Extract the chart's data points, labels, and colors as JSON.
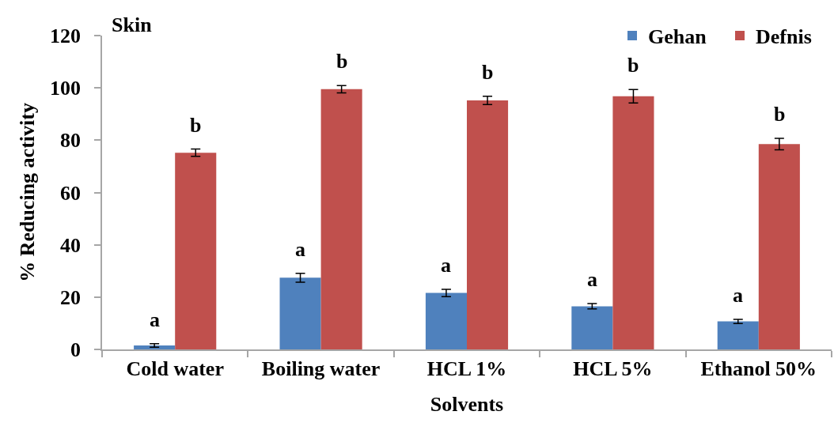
{
  "chart_data": {
    "type": "bar",
    "title": "Skin",
    "xlabel": "Solvents",
    "ylabel": "% Reducing activity",
    "categories": [
      "Cold water",
      "Boiling water",
      "HCL 1%",
      "HCL 5%",
      "Ethanol 50%"
    ],
    "series": [
      {
        "name": "Gehan",
        "color": "#4f81bd",
        "values": [
          1.5,
          27.4,
          21.6,
          16.5,
          10.7
        ],
        "errors": [
          0.7,
          1.7,
          1.4,
          1.0,
          0.8
        ],
        "value_labels": [
          "a",
          "a",
          "a",
          "a",
          "a"
        ]
      },
      {
        "name": "Defnis",
        "color": "#c0504d",
        "values": [
          75.2,
          99.5,
          95.2,
          96.8,
          78.5
        ],
        "errors": [
          1.4,
          1.4,
          1.6,
          2.6,
          2.2
        ],
        "value_labels": [
          "b",
          "b",
          "b",
          "b",
          "b"
        ]
      }
    ],
    "ylim": [
      0,
      120
    ],
    "yticks": [
      0,
      20,
      40,
      60,
      80,
      100,
      120
    ],
    "legend": "top right"
  }
}
